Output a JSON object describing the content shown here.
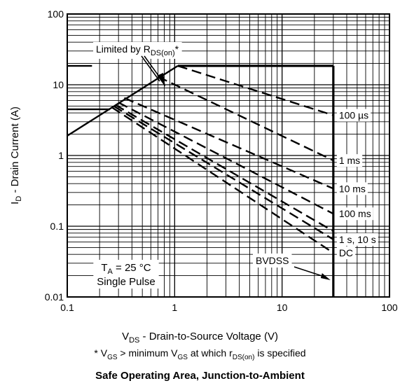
{
  "chart_data": {
    "type": "line",
    "title": "Safe Operating Area, Junction-to-Ambient",
    "xlabel": {
      "main": "V",
      "sub": "DS",
      "rest": " - Drain-to-Source Voltage (V)"
    },
    "ylabel": {
      "main": "I",
      "sub": "D",
      "rest": " - Drain Current (A)"
    },
    "footnote": {
      "p1": "* V",
      "s1": "GS",
      "p2": " >  minimum V",
      "s2": "GS",
      "p3": " at which r",
      "s3": "DS(on)",
      "p4": " is specified"
    },
    "x_scale": "log",
    "y_scale": "log",
    "xlim": [
      0.1,
      100
    ],
    "ylim": [
      0.01,
      100
    ],
    "x_ticks": [
      {
        "value": 0.1,
        "label": "0.1"
      },
      {
        "value": 1,
        "label": "1"
      },
      {
        "value": 10,
        "label": "10"
      },
      {
        "value": 100,
        "label": "100"
      }
    ],
    "y_ticks": [
      {
        "value": 100,
        "label": "100"
      },
      {
        "value": 10,
        "label": "10"
      },
      {
        "value": 1,
        "label": "1"
      },
      {
        "value": 0.1,
        "label": "0.1"
      },
      {
        "value": 0.01,
        "label": "0.01"
      }
    ],
    "grid": true,
    "rds_limit": {
      "x": [
        0.1,
        1.07
      ],
      "y": [
        1.9,
        18.5
      ]
    },
    "current_limits": [
      {
        "x": [
          0.1,
          0.17
        ],
        "y": [
          18.5,
          18.5
        ],
        "cap_line": true
      },
      {
        "x": [
          0.1,
          0.25
        ],
        "y": [
          4.5,
          4.5
        ],
        "cap_line": true
      }
    ],
    "bvdss": {
      "x": 30,
      "y_range": [
        0.01,
        18.5
      ]
    },
    "series": [
      {
        "name": "100 µs",
        "x": [
          1.07,
          30
        ],
        "y": [
          18.5,
          3.7
        ],
        "label": "100 µs"
      },
      {
        "name": "1 ms",
        "x": [
          0.7,
          30
        ],
        "y": [
          13,
          0.85
        ],
        "label": "1 ms"
      },
      {
        "name": "10 ms",
        "x": [
          0.34,
          30
        ],
        "y": [
          6.5,
          0.34
        ],
        "label": "10 ms"
      },
      {
        "name": "100 ms",
        "x": [
          0.3,
          30
        ],
        "y": [
          5.6,
          0.15
        ],
        "label": "100 ms"
      },
      {
        "name": "1 s",
        "x": [
          0.28,
          30
        ],
        "y": [
          5.2,
          0.085
        ],
        "label": ""
      },
      {
        "name": "10 s",
        "x": [
          0.27,
          30
        ],
        "y": [
          5.0,
          0.065
        ],
        "label": "1 s, 10 s"
      },
      {
        "name": "DC",
        "x": [
          0.26,
          30
        ],
        "y": [
          4.8,
          0.042
        ],
        "label": "DC"
      }
    ],
    "annotations": {
      "rds": {
        "p1": "Limited by R",
        "sub": "DS(on)",
        "p2": "*"
      },
      "bvdss": "BVDSS",
      "conditions": {
        "p1": "T",
        "sub": "A",
        "p2": " = 25 °C",
        "line2": "Single Pulse"
      }
    }
  }
}
